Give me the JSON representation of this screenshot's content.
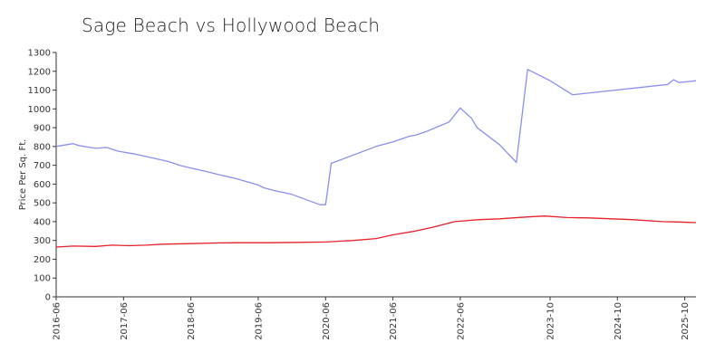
{
  "chart_data": {
    "type": "line",
    "title": "Sage Beach vs Hollywood Beach",
    "xlabel": "",
    "ylabel": "Price Per Sq. Ft.",
    "ylim": [
      0,
      1300
    ],
    "yticks": [
      0,
      100,
      200,
      300,
      400,
      500,
      600,
      700,
      800,
      900,
      1000,
      1100,
      1200,
      1300
    ],
    "xlim": [
      "2016-06",
      "2025-12"
    ],
    "xticks": [
      "2016-06",
      "2017-06",
      "2018-06",
      "2019-06",
      "2020-06",
      "2021-06",
      "2022-06",
      "2023-10",
      "2024-10",
      "2025-10"
    ],
    "grid": false,
    "legend": "none",
    "series": [
      {
        "color": "#8a8ff0",
        "points": [
          [
            "2016-06",
            800
          ],
          [
            "2016-09",
            815
          ],
          [
            "2016-10",
            805
          ],
          [
            "2017-01",
            790
          ],
          [
            "2017-03",
            795
          ],
          [
            "2017-05",
            775
          ],
          [
            "2017-08",
            760
          ],
          [
            "2017-11",
            740
          ],
          [
            "2018-02",
            720
          ],
          [
            "2018-04",
            700
          ],
          [
            "2018-06",
            685
          ],
          [
            "2018-09",
            665
          ],
          [
            "2018-11",
            650
          ],
          [
            "2019-02",
            630
          ],
          [
            "2019-06",
            595
          ],
          [
            "2019-07",
            580
          ],
          [
            "2019-09",
            565
          ],
          [
            "2019-12",
            545
          ],
          [
            "2020-05",
            490
          ],
          [
            "2020-06",
            490
          ],
          [
            "2020-07",
            710
          ],
          [
            "2021-03",
            800
          ],
          [
            "2021-06",
            825
          ],
          [
            "2021-09",
            855
          ],
          [
            "2021-10",
            860
          ],
          [
            "2021-12",
            880
          ],
          [
            "2022-02",
            905
          ],
          [
            "2022-04",
            930
          ],
          [
            "2022-06",
            1005
          ],
          [
            "2022-08",
            950
          ],
          [
            "2022-09",
            900
          ],
          [
            "2023-01",
            810
          ],
          [
            "2023-04",
            715
          ],
          [
            "2023-06",
            1210
          ],
          [
            "2023-10",
            1150
          ],
          [
            "2024-02",
            1075
          ],
          [
            "2025-07",
            1130
          ],
          [
            "2025-08",
            1155
          ],
          [
            "2025-09",
            1140
          ],
          [
            "2025-12",
            1150
          ]
        ]
      },
      {
        "color": "#e8202a",
        "points": [
          [
            "2016-06",
            265
          ],
          [
            "2016-09",
            270
          ],
          [
            "2017-01",
            268
          ],
          [
            "2017-04",
            275
          ],
          [
            "2017-07",
            272
          ],
          [
            "2017-10",
            275
          ],
          [
            "2018-01",
            280
          ],
          [
            "2018-06",
            283
          ],
          [
            "2018-11",
            287
          ],
          [
            "2019-03",
            288
          ],
          [
            "2019-08",
            288
          ],
          [
            "2020-01",
            290
          ],
          [
            "2020-06",
            292
          ],
          [
            "2020-11",
            300
          ],
          [
            "2021-03",
            310
          ],
          [
            "2021-06",
            330
          ],
          [
            "2021-10",
            350
          ],
          [
            "2022-01",
            370
          ],
          [
            "2022-05",
            400
          ],
          [
            "2022-09",
            410
          ],
          [
            "2023-01",
            415
          ],
          [
            "2023-06",
            425
          ],
          [
            "2023-09",
            430
          ],
          [
            "2024-01",
            422
          ],
          [
            "2024-05",
            420
          ],
          [
            "2024-09",
            415
          ],
          [
            "2025-01",
            410
          ],
          [
            "2025-06",
            400
          ],
          [
            "2025-09",
            398
          ],
          [
            "2025-12",
            395
          ]
        ]
      }
    ]
  }
}
